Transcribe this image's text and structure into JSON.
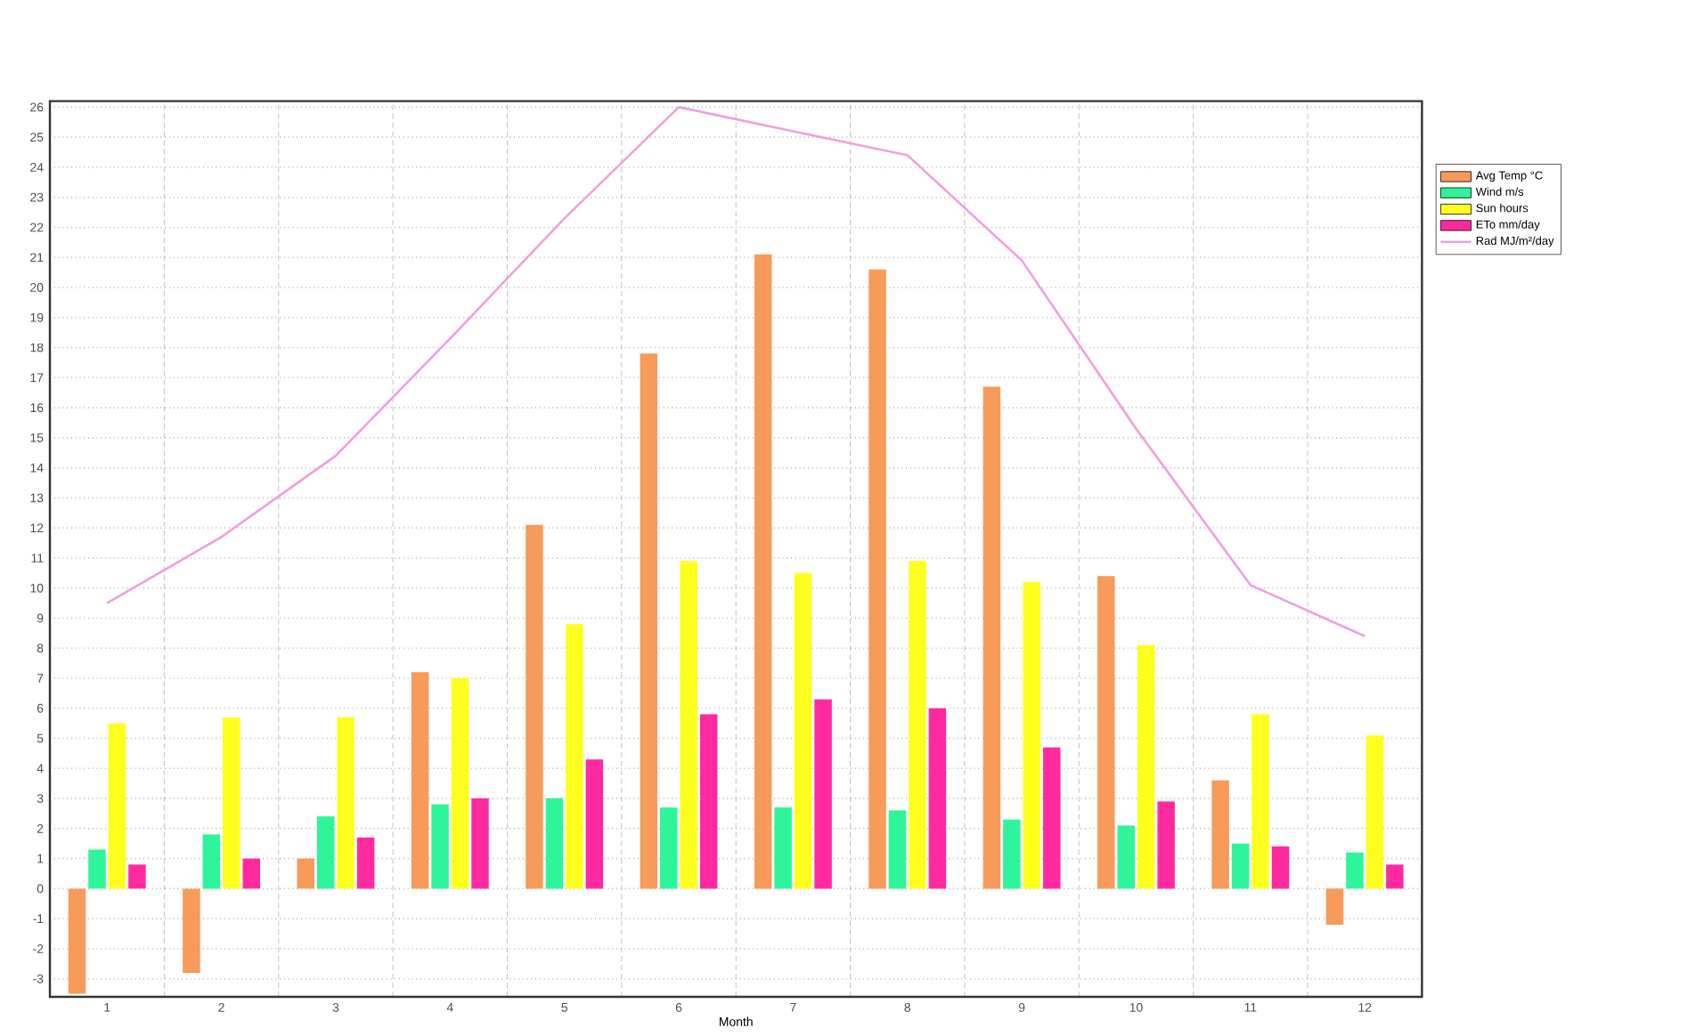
{
  "chart_data": {
    "type": "bar",
    "xlabel": "Month",
    "categories": [
      "1",
      "2",
      "3",
      "4",
      "5",
      "6",
      "7",
      "8",
      "9",
      "10",
      "11",
      "12"
    ],
    "series": [
      {
        "name": "Avg Temp °C",
        "color": "#f79a5a",
        "values": [
          -3.5,
          -2.8,
          1.0,
          7.2,
          12.1,
          17.8,
          21.1,
          20.6,
          16.7,
          10.4,
          3.6,
          -1.2
        ]
      },
      {
        "name": "Wind m/s",
        "color": "#2ef59a",
        "values": [
          1.3,
          1.8,
          2.4,
          2.8,
          3.0,
          2.7,
          2.7,
          2.6,
          2.3,
          2.1,
          1.5,
          1.2
        ]
      },
      {
        "name": "Sun hours",
        "color": "#ffff1e",
        "values": [
          5.5,
          5.7,
          5.7,
          7.0,
          8.8,
          10.9,
          10.5,
          10.9,
          10.2,
          8.1,
          5.8,
          5.1
        ]
      },
      {
        "name": "ETo mm/day",
        "color": "#ff2aa0",
        "values": [
          0.8,
          1.0,
          1.7,
          3.0,
          4.3,
          5.8,
          6.3,
          6.0,
          4.7,
          2.9,
          1.4,
          0.8
        ]
      },
      {
        "name": "Rad MJ/m²/day",
        "color": "#eea0dc",
        "type": "line",
        "values": [
          9.5,
          11.7,
          14.4,
          18.3,
          22.3,
          26.0,
          25.2,
          24.4,
          20.9,
          15.3,
          10.1,
          8.4
        ]
      }
    ],
    "ylim": [
      -3.6,
      26.2
    ],
    "yticks": [
      -3,
      -2,
      -1,
      0,
      1,
      2,
      3,
      4,
      5,
      6,
      7,
      8,
      9,
      10,
      11,
      12,
      13,
      14,
      15,
      16,
      17,
      18,
      19,
      20,
      21,
      22,
      23,
      24,
      25,
      26
    ],
    "grid": true,
    "legend": "top right"
  }
}
